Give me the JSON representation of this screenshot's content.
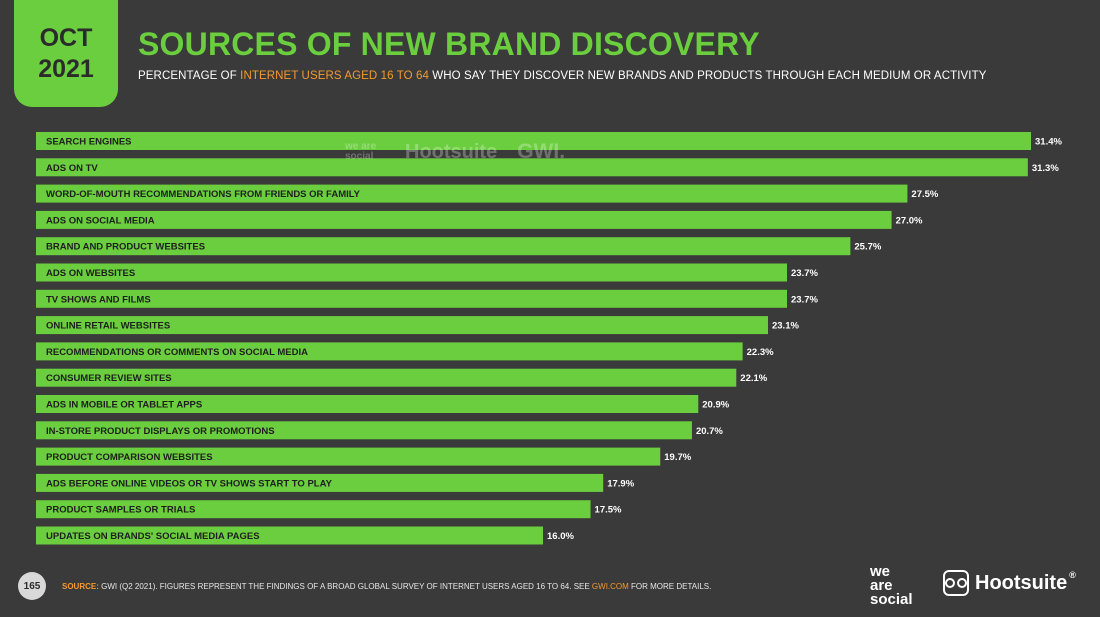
{
  "badge": {
    "month": "OCT",
    "year": "2021"
  },
  "header": {
    "title": "SOURCES OF NEW BRAND DISCOVERY",
    "subtitle_pre": "PERCENTAGE OF ",
    "subtitle_highlight": "INTERNET USERS AGED 16 TO 64",
    "subtitle_post": " WHO SAY THEY DISCOVER NEW BRANDS AND PRODUCTS THROUGH EACH MEDIUM OR ACTIVITY"
  },
  "watermark": {
    "we_are_social": "we are social",
    "hootsuite": "Hootsuite",
    "gwi": "GWI."
  },
  "colors": {
    "bar": "#6bce3f",
    "background": "#3a3a3a",
    "accent": "#f39a2e"
  },
  "chart_data": {
    "type": "bar",
    "orientation": "horizontal",
    "categories": [
      "SEARCH ENGINES",
      "ADS ON TV",
      "WORD-OF-MOUTH RECOMMENDATIONS FROM FRIENDS OR FAMILY",
      "ADS ON SOCIAL MEDIA",
      "BRAND AND PRODUCT WEBSITES",
      "ADS ON WEBSITES",
      "TV SHOWS AND FILMS",
      "ONLINE RETAIL WEBSITES",
      "RECOMMENDATIONS OR COMMENTS ON SOCIAL MEDIA",
      "CONSUMER REVIEW SITES",
      "ADS IN MOBILE OR TABLET APPS",
      "IN-STORE PRODUCT DISPLAYS OR PROMOTIONS",
      "PRODUCT COMPARISON WEBSITES",
      "ADS BEFORE ONLINE VIDEOS OR TV SHOWS START TO PLAY",
      "PRODUCT SAMPLES OR TRIALS",
      "UPDATES ON BRANDS' SOCIAL MEDIA PAGES"
    ],
    "values": [
      31.4,
      31.3,
      27.5,
      27.0,
      25.7,
      23.7,
      23.7,
      23.1,
      22.3,
      22.1,
      20.9,
      20.7,
      19.7,
      17.9,
      17.5,
      16.0
    ],
    "value_labels": [
      "31.4%",
      "31.3%",
      "27.5%",
      "27.0%",
      "25.7%",
      "23.7%",
      "23.7%",
      "23.1%",
      "22.3%",
      "22.1%",
      "20.9%",
      "20.7%",
      "19.7%",
      "17.9%",
      "17.5%",
      "16.0%"
    ],
    "xlim": [
      0,
      31.4
    ],
    "grid": false
  },
  "footer": {
    "page_number": "165",
    "source_label": "SOURCE:",
    "source_text": " GWI (Q2 2021). FIGURES REPRESENT THE FINDINGS OF A BROAD GLOBAL SURVEY OF INTERNET USERS AGED 16 TO 64. SEE ",
    "source_link": "GWI.COM",
    "source_tail": " FOR MORE DETAILS.",
    "logo_we": "we",
    "logo_are": "are",
    "logo_social": "social",
    "logo_hootsuite": "Hootsuite",
    "registered_mark": "®"
  }
}
